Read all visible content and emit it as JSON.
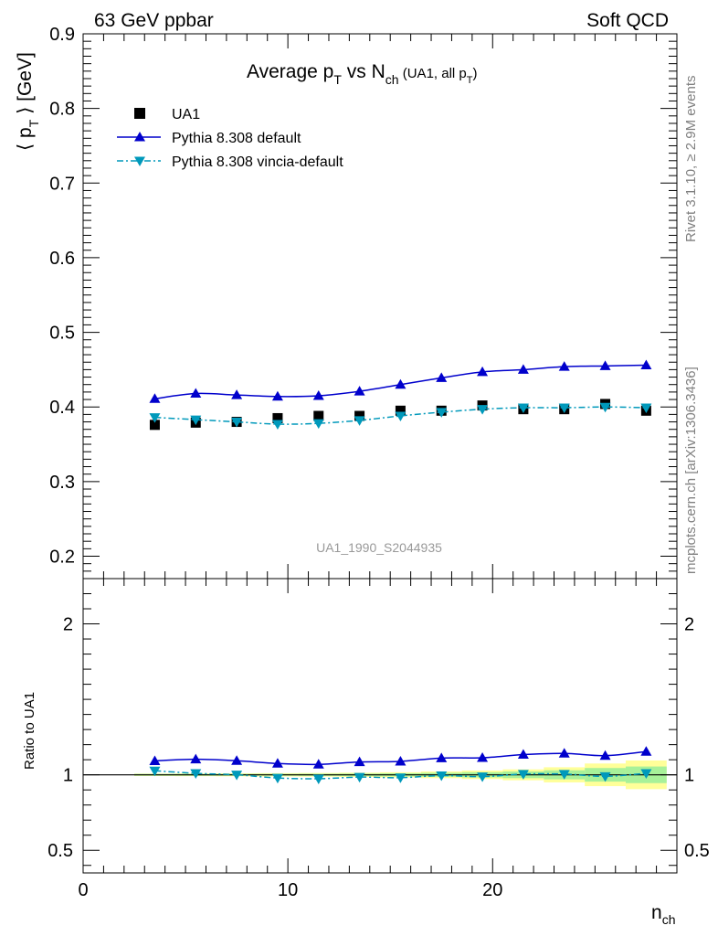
{
  "header": {
    "left": "63 GeV ppbar",
    "right": "Soft QCD"
  },
  "side_labels": {
    "rivet": "Rivet 3.1.10, ≥ 2.9M events",
    "mcplots": "mcplots.cern.ch [arXiv:1306.3436]"
  },
  "chart_data": {
    "type": "scatter",
    "title": {
      "prefix": "Average p",
      "sub1": "T",
      "middle": " vs N",
      "sub2": "ch",
      "suffix": " (UA1, all p",
      "sub3": "T",
      "end": ")"
    },
    "analysis_label": "UA1_1990_S2044935",
    "ylabel": {
      "open": "⟨ p",
      "sub": "T",
      "close": " ⟩ [GeV]"
    },
    "xlabel": {
      "main": "n",
      "sub": "ch"
    },
    "ratio_ylabel": "Ratio to UA1",
    "xlim": [
      0,
      29
    ],
    "ylim": [
      0.17,
      0.9
    ],
    "ratio_ylim": [
      0.35,
      2.3
    ],
    "x_ticks": [
      "0",
      "10",
      "20"
    ],
    "y_ticks": [
      "0.2",
      "0.3",
      "0.4",
      "0.5",
      "0.6",
      "0.7",
      "0.8",
      "0.9"
    ],
    "ratio_ticks": [
      "0.5",
      "1",
      "2"
    ],
    "legend_position": "top-left",
    "x": [
      3.5,
      5.5,
      7.5,
      9.5,
      11.5,
      13.5,
      15.5,
      17.5,
      19.5,
      21.5,
      23.5,
      25.5,
      27.5
    ],
    "series": [
      {
        "name": "UA1",
        "marker": "square",
        "color": "#000000",
        "values": [
          0.376,
          0.379,
          0.38,
          0.385,
          0.388,
          0.388,
          0.395,
          0.395,
          0.402,
          0.397,
          0.397,
          0.404,
          0.395
        ],
        "ratio_band_inner": [
          0.006,
          0.006,
          0.006,
          0.006,
          0.007,
          0.008,
          0.01,
          0.013,
          0.017,
          0.022,
          0.03,
          0.045,
          0.055
        ],
        "ratio_band_outer": [
          0.008,
          0.009,
          0.01,
          0.011,
          0.012,
          0.014,
          0.017,
          0.022,
          0.028,
          0.036,
          0.05,
          0.075,
          0.095
        ]
      },
      {
        "name": "Pythia 8.308 default",
        "marker": "triangle-up",
        "color": "#0000cc",
        "values": [
          0.411,
          0.418,
          0.416,
          0.414,
          0.415,
          0.421,
          0.43,
          0.439,
          0.447,
          0.45,
          0.454,
          0.455,
          0.456
        ],
        "ratio": [
          1.092,
          1.103,
          1.093,
          1.075,
          1.069,
          1.085,
          1.089,
          1.111,
          1.113,
          1.134,
          1.142,
          1.127,
          1.154
        ]
      },
      {
        "name": "Pythia 8.308 vincia-default",
        "marker": "triangle-down",
        "color": "#0099bb",
        "values": [
          0.386,
          0.383,
          0.38,
          0.377,
          0.378,
          0.382,
          0.388,
          0.393,
          0.397,
          0.399,
          0.399,
          0.4,
          0.399
        ],
        "ratio": [
          1.027,
          1.01,
          1.0,
          0.979,
          0.974,
          0.985,
          0.981,
          0.995,
          0.988,
          1.005,
          1.005,
          0.99,
          1.01
        ]
      }
    ]
  }
}
